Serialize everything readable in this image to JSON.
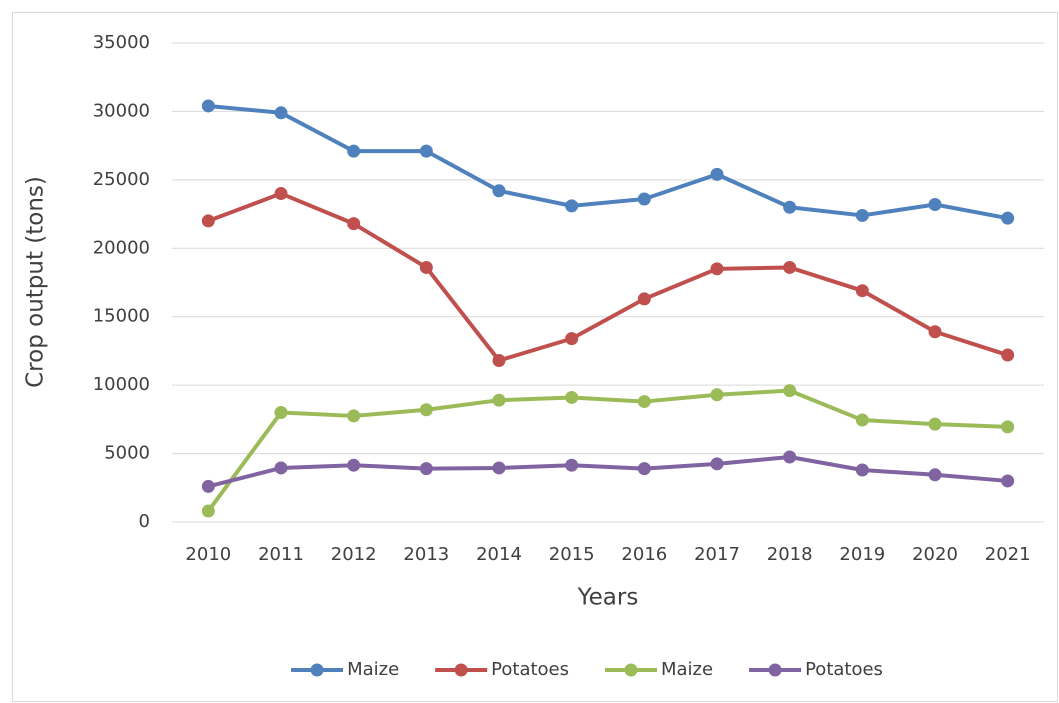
{
  "chart_data": {
    "type": "line",
    "x_label": "Years",
    "y_label": "Crop output (tons)",
    "categories": [
      "2010",
      "2011",
      "2012",
      "2013",
      "2014",
      "2015",
      "2016",
      "2017",
      "2018",
      "2019",
      "2020",
      "2021"
    ],
    "series": [
      {
        "name": "Maize",
        "color": "#4f81bd",
        "values": [
          30400,
          29900,
          27100,
          27100,
          24200,
          23100,
          23600,
          25400,
          23000,
          22400,
          23200,
          22200
        ]
      },
      {
        "name": "Potatoes",
        "color": "#c0504d",
        "values": [
          22000,
          24000,
          21800,
          18600,
          11800,
          13400,
          16300,
          18500,
          18600,
          16900,
          13900,
          12200
        ]
      },
      {
        "name": "Maize",
        "color": "#9bbb59",
        "values": [
          800,
          8000,
          7750,
          8200,
          8900,
          9100,
          8800,
          9300,
          9600,
          7450,
          7150,
          6950
        ]
      },
      {
        "name": "Potatoes",
        "color": "#8064a2",
        "values": [
          2600,
          3950,
          4150,
          3900,
          3950,
          4150,
          3900,
          4250,
          4750,
          3800,
          3450,
          3000
        ]
      }
    ],
    "ylim": [
      0,
      35000
    ],
    "yticks": [
      0,
      5000,
      10000,
      15000,
      20000,
      25000,
      30000,
      35000
    ],
    "grid": true,
    "legend": "bottom"
  }
}
